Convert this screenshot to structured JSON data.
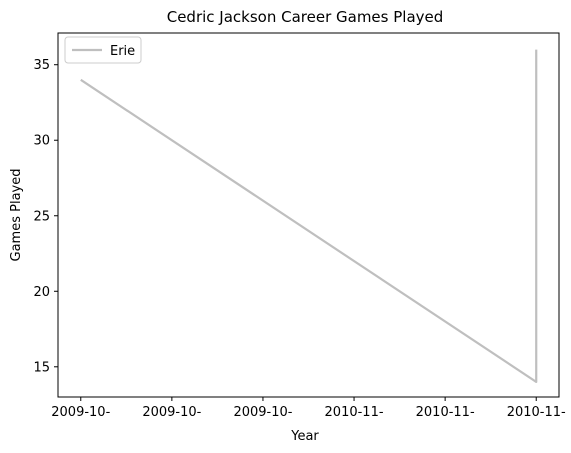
{
  "chart_data": {
    "type": "line",
    "title": "Cedric Jackson Career Games Played",
    "xlabel": "Year",
    "ylabel": "Games Played",
    "x_tick_labels": [
      "2009-10-",
      "2009-10-",
      "2009-10-",
      "2010-11-",
      "2010-11-",
      "2010-11-"
    ],
    "y_ticks": [
      15,
      20,
      25,
      30,
      35
    ],
    "ylim": [
      13.0,
      37.1
    ],
    "xlim": [
      -0.25,
      5.25
    ],
    "grid": false,
    "legend_position": "upper-left",
    "series": [
      {
        "name": "Erie",
        "color": "#bfbfbf",
        "points": [
          {
            "x": 0,
            "y": 34
          },
          {
            "x": 5,
            "y": 14
          },
          {
            "x": 5,
            "y": 36
          }
        ]
      }
    ]
  }
}
